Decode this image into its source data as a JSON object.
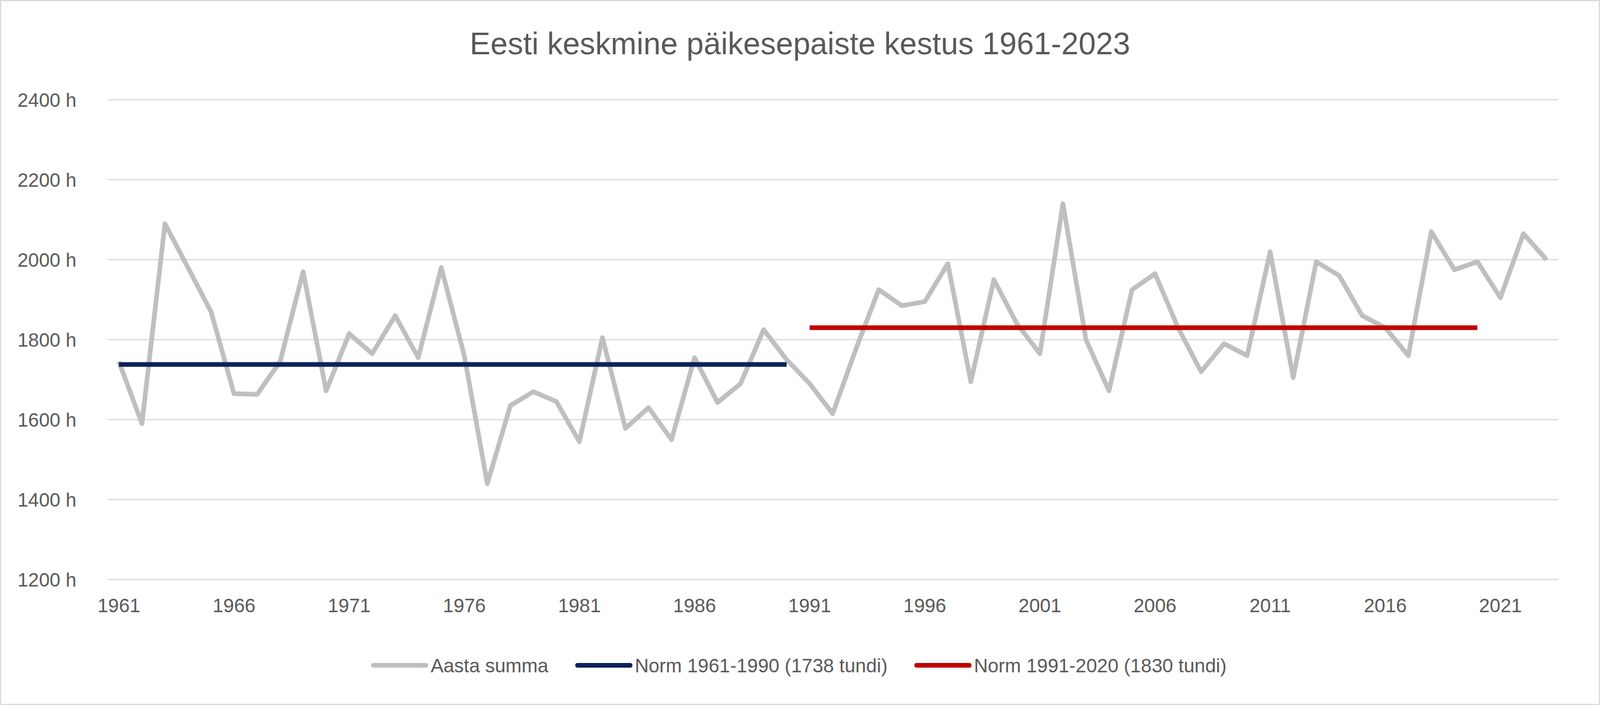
{
  "chart_data": {
    "type": "line",
    "title": "Eesti keskmine päikesepaiste kestus 1961-2023",
    "x": [
      1961,
      1962,
      1963,
      1964,
      1965,
      1966,
      1967,
      1968,
      1969,
      1970,
      1971,
      1972,
      1973,
      1974,
      1975,
      1976,
      1977,
      1978,
      1979,
      1980,
      1981,
      1982,
      1983,
      1984,
      1985,
      1986,
      1987,
      1988,
      1989,
      1990,
      1991,
      1992,
      1993,
      1994,
      1995,
      1996,
      1997,
      1998,
      1999,
      2000,
      2001,
      2002,
      2003,
      2004,
      2005,
      2006,
      2007,
      2008,
      2009,
      2010,
      2011,
      2012,
      2013,
      2014,
      2015,
      2016,
      2017,
      2018,
      2019,
      2020,
      2021,
      2022,
      2023
    ],
    "series": [
      {
        "name": "Aasta summa",
        "color": "#bfbfbf",
        "values": [
          1745,
          1590,
          2090,
          1980,
          1870,
          1665,
          1663,
          1745,
          1970,
          1672,
          1815,
          1765,
          1860,
          1755,
          1980,
          1760,
          1440,
          1635,
          1670,
          1645,
          1545,
          1805,
          1578,
          1630,
          1550,
          1755,
          1643,
          1690,
          1825,
          1750,
          1690,
          1615,
          1775,
          1925,
          1885,
          1895,
          1990,
          1695,
          1950,
          1840,
          1765,
          2140,
          1800,
          1672,
          1925,
          1965,
          1830,
          1720,
          1790,
          1760,
          2020,
          1705,
          1995,
          1960,
          1860,
          1830,
          1760,
          2070,
          1975,
          1995,
          1905,
          2065,
          2000
        ]
      },
      {
        "name": "Norm 1961-1990 (1738 tundi)",
        "color": "#0e2258",
        "values": [
          1738,
          1738,
          1738,
          1738,
          1738,
          1738,
          1738,
          1738,
          1738,
          1738,
          1738,
          1738,
          1738,
          1738,
          1738,
          1738,
          1738,
          1738,
          1738,
          1738,
          1738,
          1738,
          1738,
          1738,
          1738,
          1738,
          1738,
          1738,
          1738,
          1738,
          null,
          null,
          null,
          null,
          null,
          null,
          null,
          null,
          null,
          null,
          null,
          null,
          null,
          null,
          null,
          null,
          null,
          null,
          null,
          null,
          null,
          null,
          null,
          null,
          null,
          null,
          null,
          null,
          null,
          null,
          null,
          null,
          null
        ]
      },
      {
        "name": "Norm 1991-2020 (1830 tundi)",
        "color": "#c00000",
        "values": [
          null,
          null,
          null,
          null,
          null,
          null,
          null,
          null,
          null,
          null,
          null,
          null,
          null,
          null,
          null,
          null,
          null,
          null,
          null,
          null,
          null,
          null,
          null,
          null,
          null,
          null,
          null,
          null,
          null,
          null,
          1830,
          1830,
          1830,
          1830,
          1830,
          1830,
          1830,
          1830,
          1830,
          1830,
          1830,
          1830,
          1830,
          1830,
          1830,
          1830,
          1830,
          1830,
          1830,
          1830,
          1830,
          1830,
          1830,
          1830,
          1830,
          1830,
          1830,
          1830,
          1830,
          1830,
          null,
          null,
          null
        ]
      }
    ],
    "xlim": [
      1960.5,
      2023.5
    ],
    "xticks": [
      1961,
      1966,
      1971,
      1976,
      1981,
      1986,
      1991,
      1996,
      2001,
      2006,
      2011,
      2016,
      2021
    ],
    "ylim": [
      1200,
      2400
    ],
    "yticks": [
      {
        "value": 1200,
        "label": "1200 h"
      },
      {
        "value": 1400,
        "label": "1400 h"
      },
      {
        "value": 1600,
        "label": "1600 h"
      },
      {
        "value": 1800,
        "label": "1800 h"
      },
      {
        "value": 2000,
        "label": "2000 h"
      },
      {
        "value": 2200,
        "label": "2200 h"
      },
      {
        "value": 2400,
        "label": "2400 h"
      }
    ],
    "grid": true,
    "legend": "bottom"
  }
}
